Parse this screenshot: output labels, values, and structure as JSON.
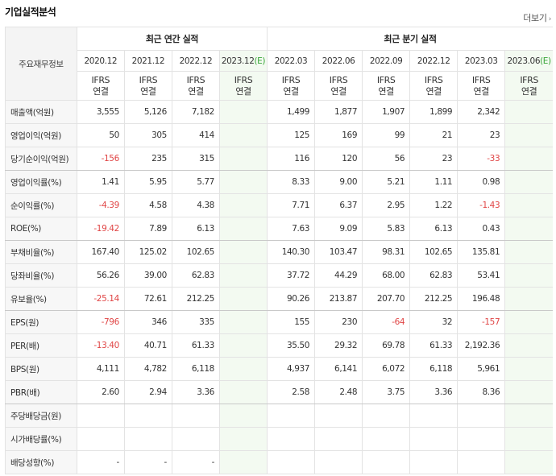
{
  "header": {
    "title": "기업실적분석",
    "more_label": "더보기"
  },
  "table": {
    "corner_label": "주요재무정보",
    "annual_group": "최근 연간 실적",
    "quarter_group": "최근 분기 실적",
    "annual_periods": [
      "2020.12",
      "2021.12",
      "2022.12",
      "2023.12"
    ],
    "annual_estimate_mark": "(E)",
    "quarter_periods": [
      "2022.03",
      "2022.06",
      "2022.09",
      "2022.12",
      "2023.03",
      "2023.06"
    ],
    "quarter_estimate_mark": "(E)",
    "ifrs_line1": "IFRS",
    "ifrs_line2": "연결",
    "rows": [
      {
        "label": "매출액(억원)",
        "values": [
          "3,555",
          "5,126",
          "7,182",
          "",
          "1,499",
          "1,877",
          "1,907",
          "1,899",
          "2,342",
          ""
        ]
      },
      {
        "label": "영업이익(억원)",
        "values": [
          "50",
          "305",
          "414",
          "",
          "125",
          "169",
          "99",
          "21",
          "23",
          ""
        ]
      },
      {
        "label": "당기순이익(억원)",
        "values": [
          "-156",
          "235",
          "315",
          "",
          "116",
          "120",
          "56",
          "23",
          "-33",
          ""
        ]
      },
      {
        "label": "영업이익률(%)",
        "values": [
          "1.41",
          "5.95",
          "5.77",
          "",
          "8.33",
          "9.00",
          "5.21",
          "1.11",
          "0.98",
          ""
        ]
      },
      {
        "label": "순이익률(%)",
        "values": [
          "-4.39",
          "4.58",
          "4.38",
          "",
          "7.71",
          "6.37",
          "2.95",
          "1.22",
          "-1.43",
          ""
        ]
      },
      {
        "label": "ROE(%)",
        "values": [
          "-19.42",
          "7.89",
          "6.13",
          "",
          "7.63",
          "9.09",
          "5.83",
          "6.13",
          "0.43",
          ""
        ]
      },
      {
        "label": "부채비율(%)",
        "values": [
          "167.40",
          "125.02",
          "102.65",
          "",
          "140.30",
          "103.47",
          "98.31",
          "102.65",
          "135.81",
          ""
        ]
      },
      {
        "label": "당좌비율(%)",
        "values": [
          "56.26",
          "39.00",
          "62.83",
          "",
          "37.72",
          "44.29",
          "68.00",
          "62.83",
          "53.41",
          ""
        ]
      },
      {
        "label": "유보율(%)",
        "values": [
          "-25.14",
          "72.61",
          "212.25",
          "",
          "90.26",
          "213.87",
          "207.70",
          "212.25",
          "196.48",
          ""
        ]
      },
      {
        "label": "EPS(원)",
        "values": [
          "-796",
          "346",
          "335",
          "",
          "155",
          "230",
          "-64",
          "32",
          "-157",
          ""
        ]
      },
      {
        "label": "PER(배)",
        "values": [
          "-13.40",
          "40.71",
          "61.33",
          "",
          "35.50",
          "29.32",
          "69.78",
          "61.33",
          "2,192.36",
          ""
        ]
      },
      {
        "label": "BPS(원)",
        "values": [
          "4,111",
          "4,782",
          "6,118",
          "",
          "4,937",
          "6,141",
          "6,072",
          "6,118",
          "5,961",
          ""
        ]
      },
      {
        "label": "PBR(배)",
        "values": [
          "2.60",
          "2.94",
          "3.36",
          "",
          "2.58",
          "2.48",
          "3.75",
          "3.36",
          "8.36",
          ""
        ]
      },
      {
        "label": "주당배당금(원)",
        "values": [
          "",
          "",
          "",
          "",
          "",
          "",
          "",
          "",
          "",
          ""
        ]
      },
      {
        "label": "시가배당률(%)",
        "values": [
          "",
          "",
          "",
          "",
          "",
          "",
          "",
          "",
          "",
          ""
        ]
      },
      {
        "label": "배당성향(%)",
        "values": [
          "-",
          "-",
          "-",
          "",
          "",
          "",
          "",
          "",
          "",
          ""
        ]
      }
    ]
  },
  "colors": {
    "negative": "#e04545",
    "ifrs": "#e05a1c",
    "estimate_mark": "#3aa63a",
    "estimate_bg": "#f3faf1"
  }
}
